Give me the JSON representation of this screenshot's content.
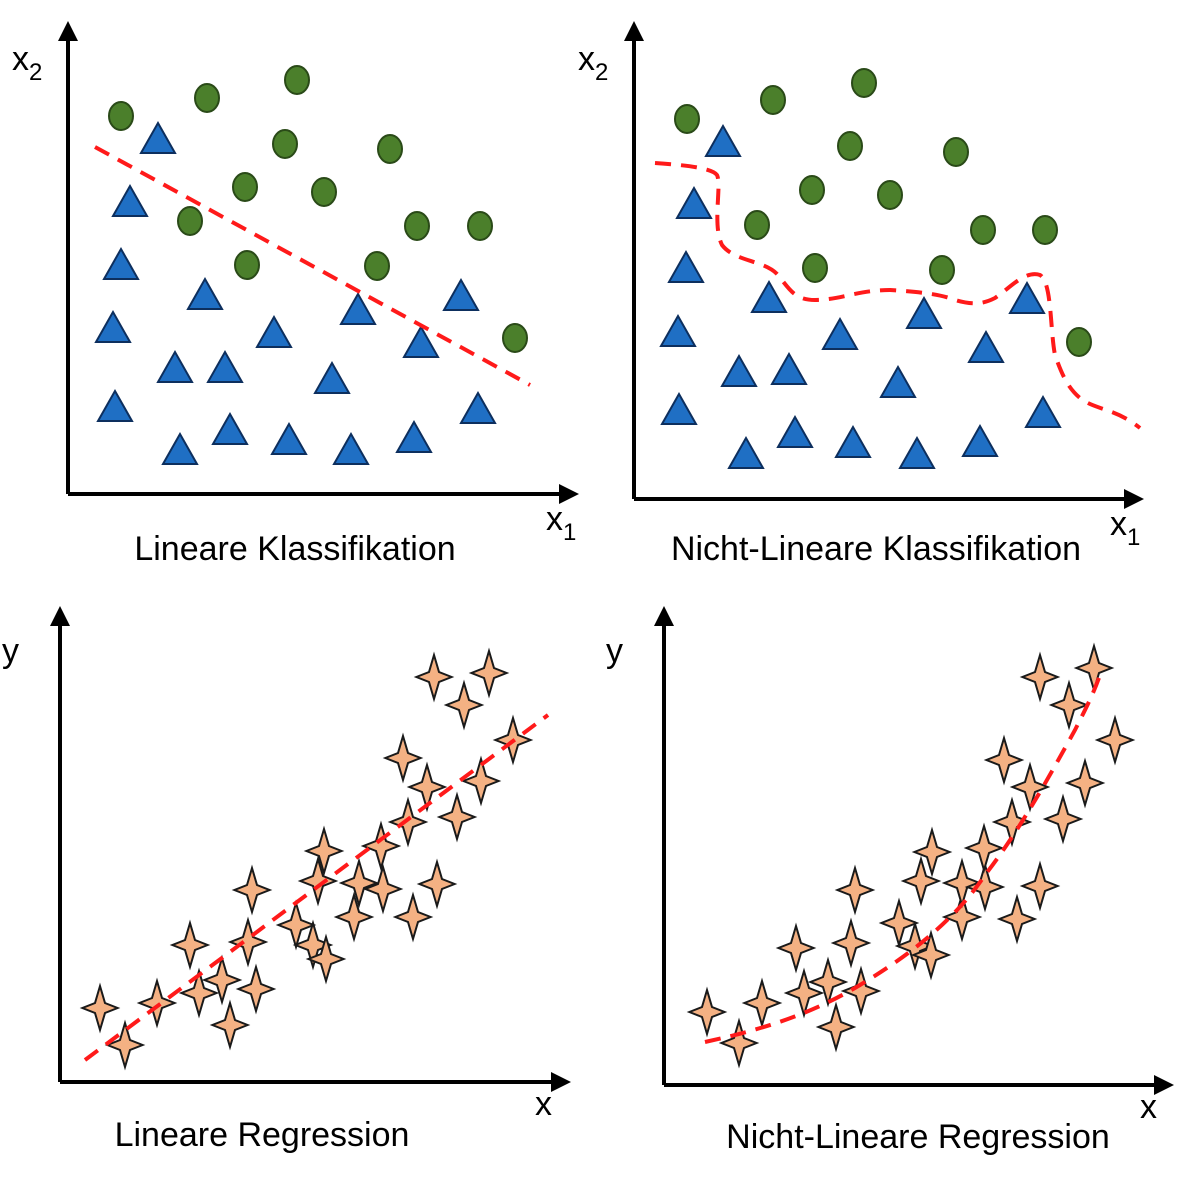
{
  "panels": [
    {
      "id": "linear-classification",
      "caption": "Lineare Klassifikation",
      "x_axis": {
        "main": "x",
        "sub": "1"
      },
      "y_axis": {
        "main": "x",
        "sub": "2"
      }
    },
    {
      "id": "nonlinear-classification",
      "caption": "Nicht-Lineare Klassifikation",
      "x_axis": {
        "main": "x",
        "sub": "1"
      },
      "y_axis": {
        "main": "x",
        "sub": "2"
      }
    },
    {
      "id": "linear-regression",
      "caption": "Lineare Regression",
      "x_axis": {
        "main": "x",
        "sub": ""
      },
      "y_axis": {
        "main": "y",
        "sub": ""
      }
    },
    {
      "id": "nonlinear-regression",
      "caption": "Nicht-Lineare Regression",
      "x_axis": {
        "main": "x",
        "sub": ""
      },
      "y_axis": {
        "main": "y",
        "sub": ""
      }
    }
  ],
  "colors": {
    "class_circle": "#4b7f2b",
    "class_triangle": "#1f6fc4",
    "regression_star": "#f4b183",
    "boundary": "#ff1a1a"
  }
}
